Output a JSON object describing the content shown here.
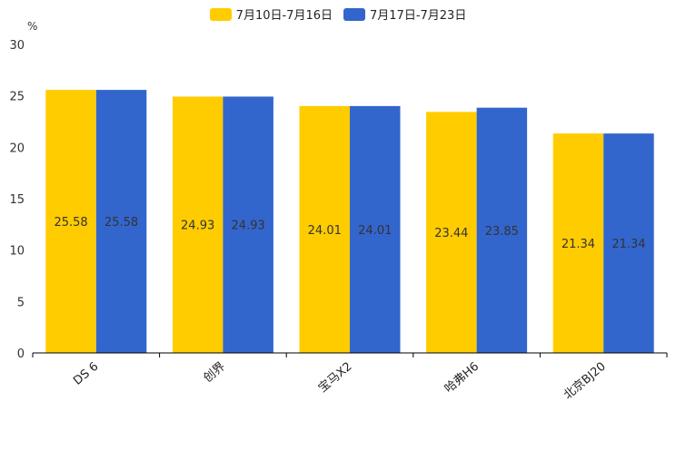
{
  "chart_data": {
    "type": "bar",
    "unit": "%",
    "categories": [
      "DS 6",
      "创界",
      "宝马X2",
      "哈弗H6",
      "北京BJ20"
    ],
    "series": [
      {
        "name": "7月10日-7月16日",
        "color": "#FFCC00",
        "values": [
          25.58,
          24.93,
          24.01,
          23.44,
          21.34
        ]
      },
      {
        "name": "7月17日-7月23日",
        "color": "#3366CC",
        "values": [
          25.58,
          24.93,
          24.01,
          23.85,
          21.34
        ]
      }
    ],
    "ylim": [
      0,
      30
    ],
    "yticks": [
      0,
      5,
      10,
      15,
      20,
      25,
      30
    ],
    "title": "",
    "xlabel": "",
    "ylabel": "%",
    "legend_position": "top-center",
    "grid": false
  }
}
